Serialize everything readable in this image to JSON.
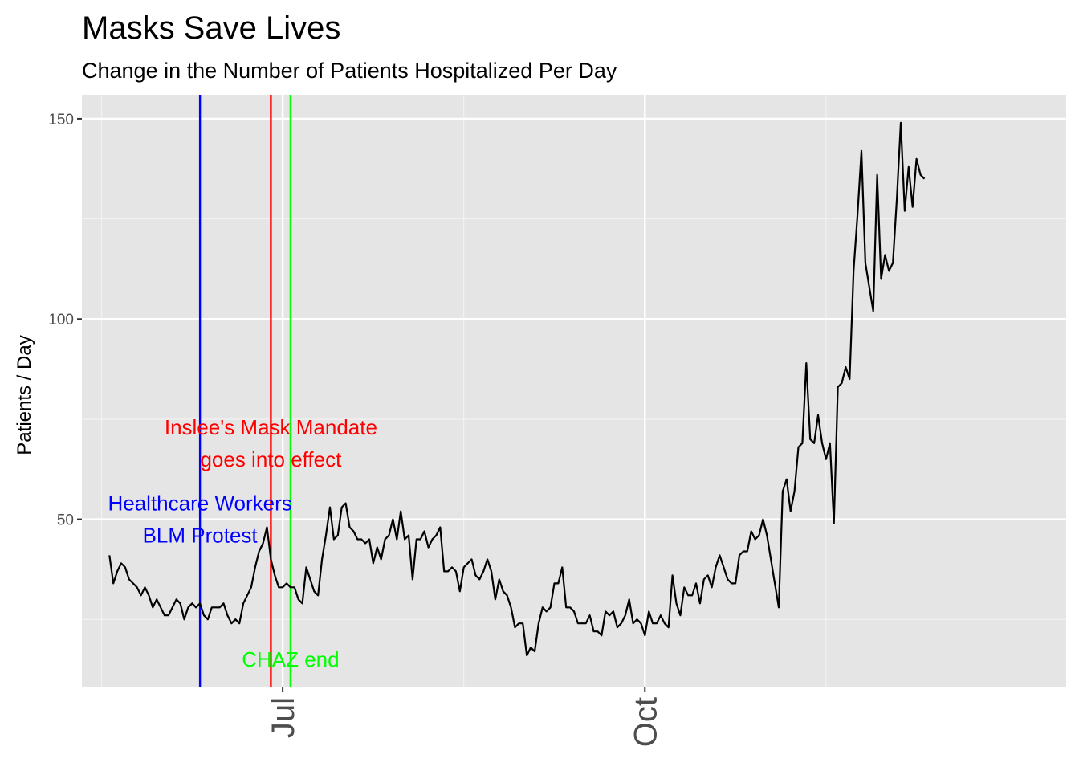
{
  "chart_data": {
    "type": "line",
    "title": "Masks Save Lives",
    "subtitle": "Change in the Number of Patients Hospitalized Per Day",
    "xlabel": "",
    "ylabel": "Patients / Day",
    "x_start_date": "2020-05-18",
    "x_range_days": [
      -7,
      243
    ],
    "ylim": [
      8,
      156
    ],
    "y_ticks": [
      50,
      100,
      150
    ],
    "x_ticks": [
      {
        "day": 44,
        "label": "Jul"
      },
      {
        "day": 136,
        "label": "Oct"
      }
    ],
    "x_minor_days": [
      -2,
      90,
      182
    ],
    "series": [
      {
        "name": "Patients / Day",
        "color": "#000000",
        "start_day": 0,
        "values": [
          41,
          34,
          37,
          39,
          38,
          35,
          34,
          33,
          31,
          33,
          31,
          28,
          30,
          28,
          26,
          26,
          28,
          30,
          29,
          25,
          28,
          29,
          28,
          29,
          26,
          25,
          28,
          28,
          28,
          29,
          26,
          24,
          25,
          24,
          29,
          31,
          33,
          38,
          42,
          44,
          48,
          40,
          36,
          33,
          33,
          34,
          33,
          33,
          30,
          29,
          38,
          35,
          32,
          31,
          40,
          46,
          53,
          45,
          46,
          53,
          54,
          48,
          47,
          45,
          45,
          44,
          45,
          39,
          43,
          40,
          45,
          46,
          50,
          45,
          52,
          45,
          46,
          35,
          45,
          45,
          47,
          43,
          45,
          46,
          48,
          37,
          37,
          38,
          37,
          32,
          38,
          39,
          40,
          36,
          35,
          37,
          40,
          37,
          30,
          35,
          32,
          31,
          28,
          23,
          24,
          24,
          16,
          18,
          17,
          24,
          28,
          27,
          28,
          34,
          34,
          38,
          28,
          28,
          27,
          24,
          24,
          24,
          26,
          22,
          22,
          21,
          27,
          26,
          27,
          23,
          24,
          26,
          30,
          24,
          25,
          24,
          21,
          27,
          24,
          24,
          26,
          24,
          23,
          36,
          29,
          26,
          33,
          31,
          31,
          34,
          29,
          35,
          36,
          33,
          38,
          41,
          38,
          35,
          34,
          34,
          41,
          42,
          42,
          47,
          45,
          46,
          50,
          46,
          40,
          34,
          28,
          57,
          60,
          52,
          57,
          68,
          69,
          89,
          70,
          69,
          76,
          69,
          65,
          69,
          49,
          83,
          84,
          88,
          85,
          112,
          126,
          142,
          114,
          108,
          102,
          136,
          110,
          116,
          112,
          114,
          130,
          149,
          127,
          138,
          128,
          140,
          136,
          135
        ]
      }
    ],
    "vlines": [
      {
        "day": 23,
        "color": "#0000ff",
        "labels": [
          "Healthcare Workers",
          "BLM Protest"
        ],
        "label_y": [
          54,
          46
        ]
      },
      {
        "day": 41,
        "color": "#ff0000",
        "labels": [
          "Inslee's Mask Mandate",
          "goes into effect"
        ],
        "label_y": [
          73,
          65
        ]
      },
      {
        "day": 46,
        "color": "#00ff00",
        "labels": [
          "CHAZ end"
        ],
        "label_y": [
          15
        ]
      }
    ]
  }
}
